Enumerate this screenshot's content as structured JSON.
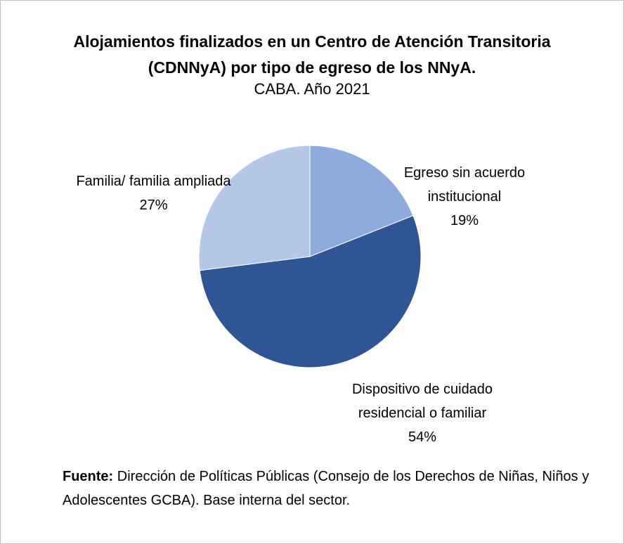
{
  "chart_data": {
    "type": "pie",
    "title": "Alojamientos finalizados en un Centro de Atención Transitoria  (CDNNyA) por tipo de egreso de los NNyA.",
    "subtitle": "CABA. Año 2021",
    "categories": [
      "Egreso sin acuerdo institucional",
      "Dispositivo de cuidado residencial o familiar",
      "Familia/ familia ampliada"
    ],
    "values": [
      19,
      54,
      27
    ],
    "value_labels": [
      "19%",
      "54%",
      "27%"
    ],
    "colors": [
      "#8faadc",
      "#2f5597",
      "#b4c7e7"
    ],
    "source": {
      "label": "Fuente:",
      "text": "Dirección de Políticas Públicas (Consejo de los Derechos de Niñas, Niños y Adolescentes GCBA). Base interna del sector."
    }
  }
}
